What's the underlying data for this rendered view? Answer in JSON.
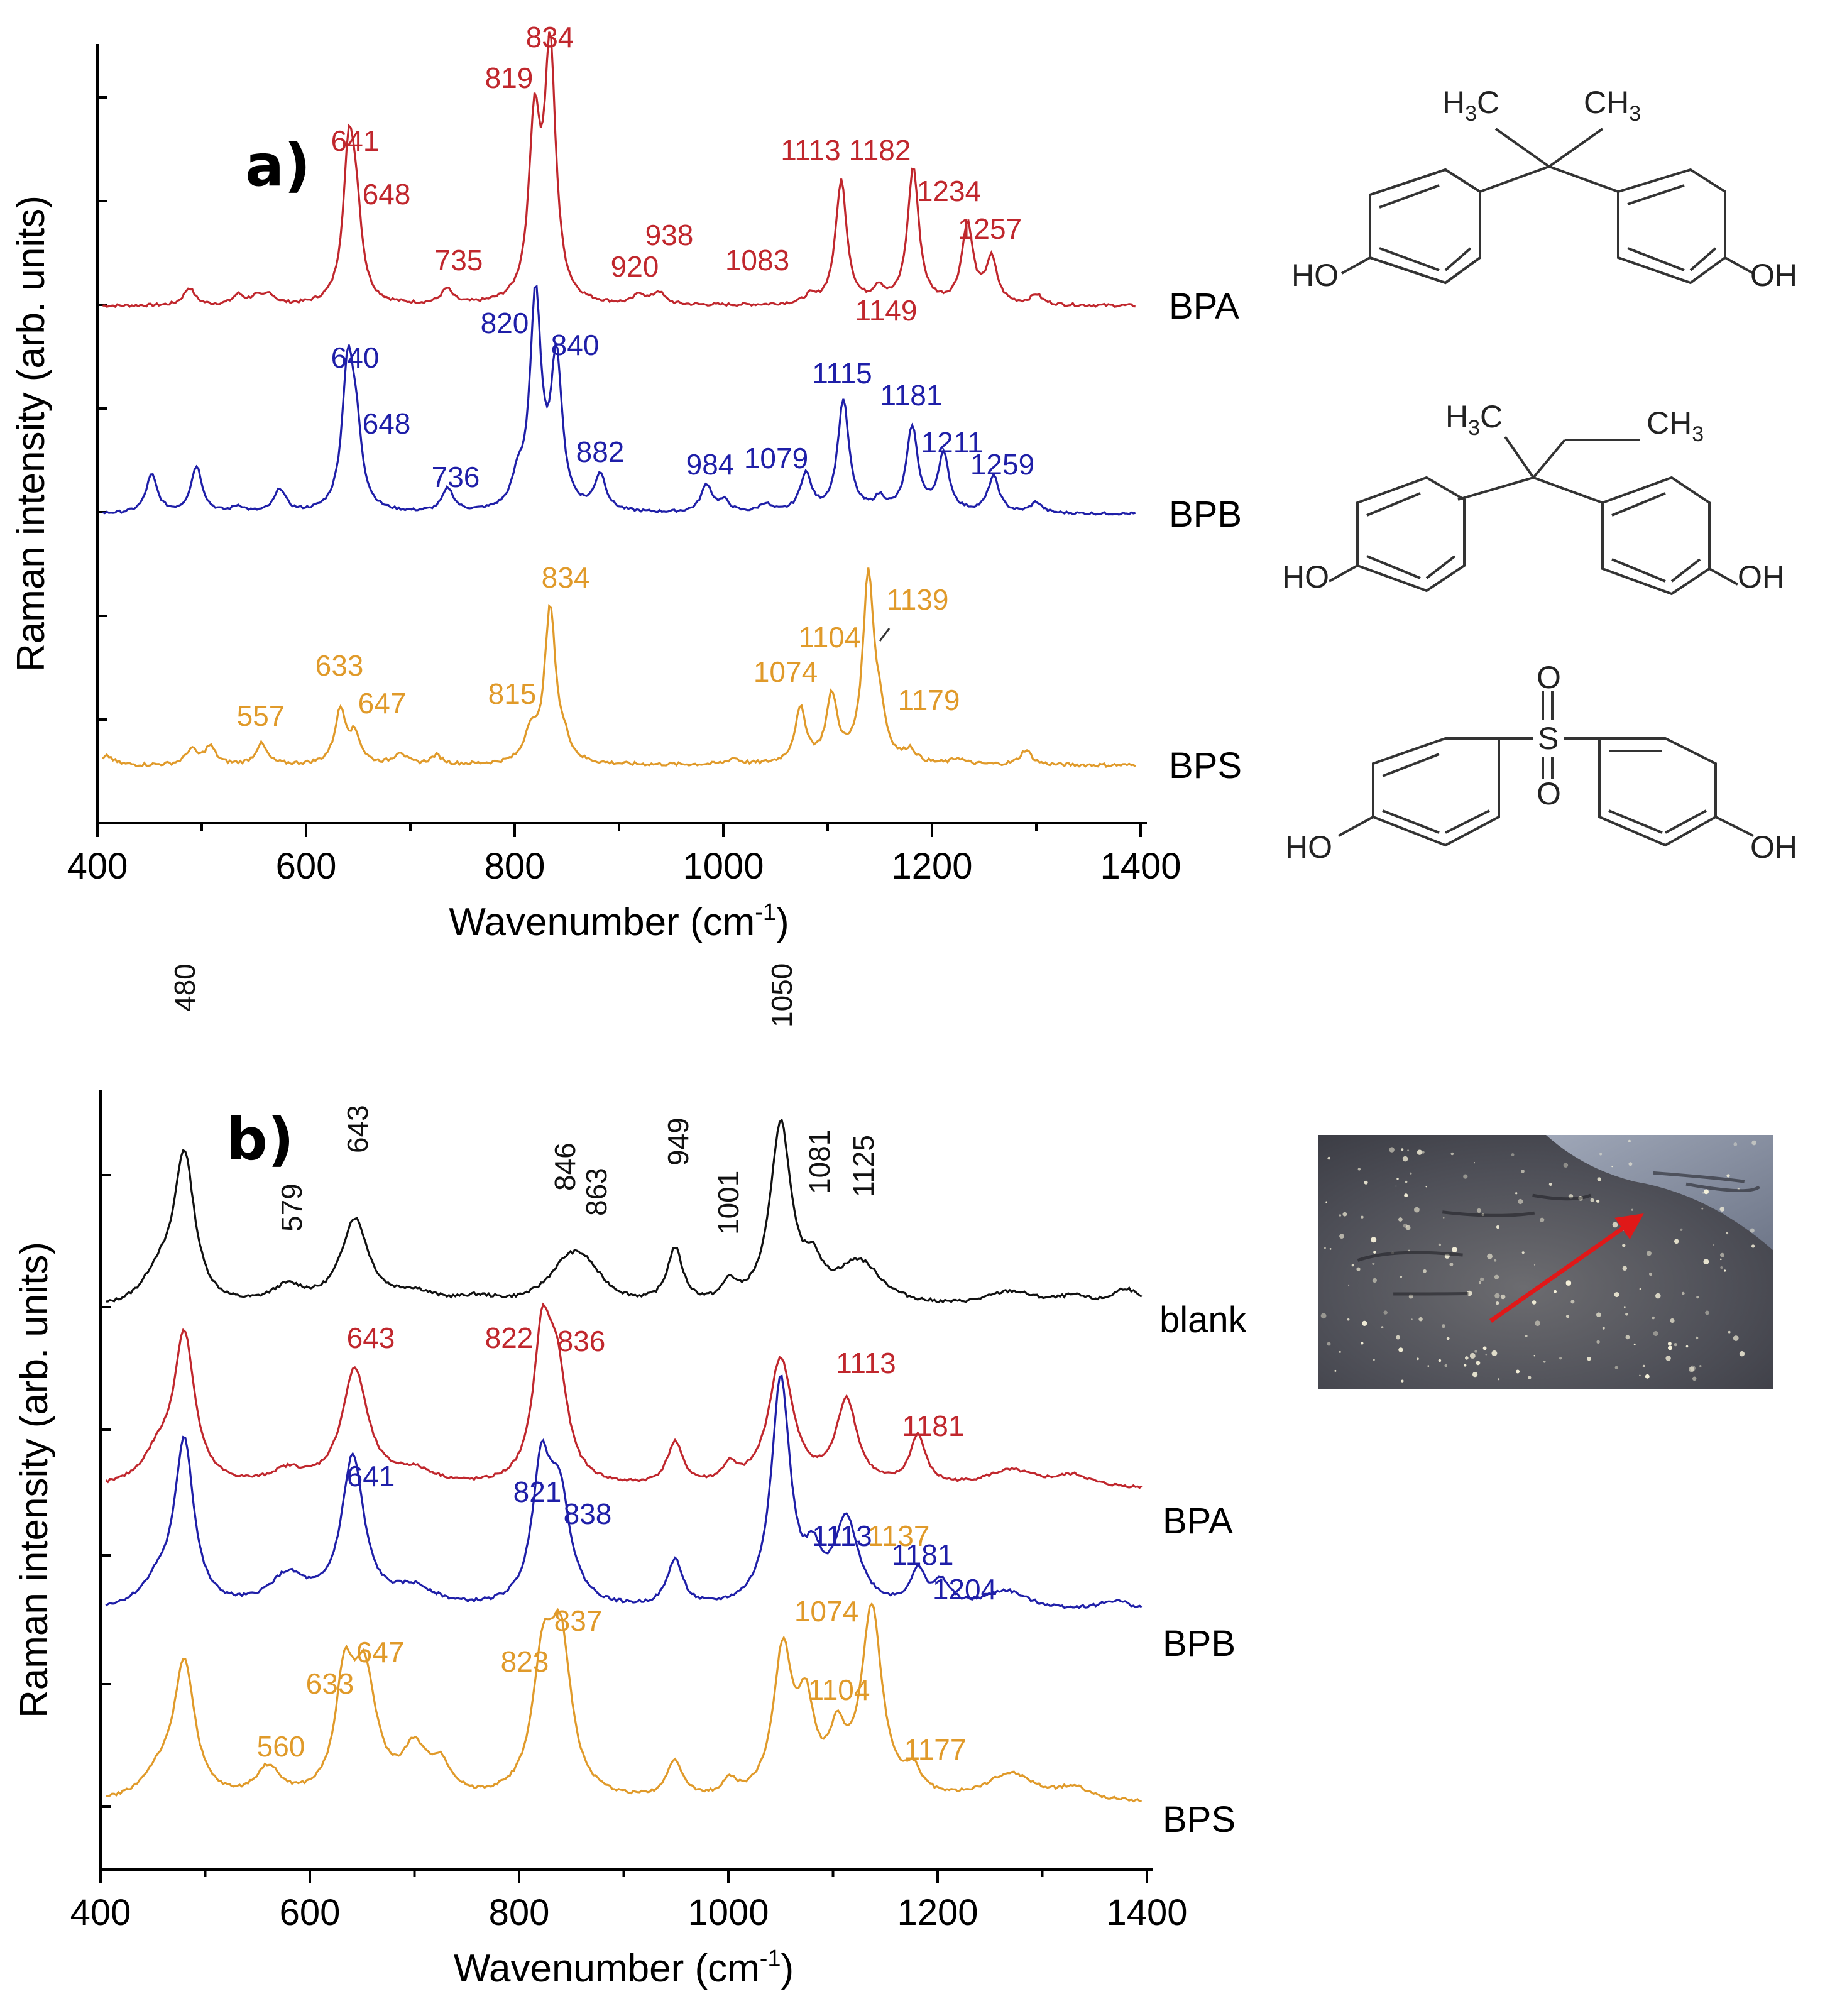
{
  "colors": {
    "BPA": "#c0272d",
    "BPB": "#1f1fa8",
    "BPS": "#e09a2a",
    "blank": "#111111"
  },
  "panel_a": {
    "letter": "a)"
  },
  "panel_b": {
    "letter": "b)"
  },
  "structures": {
    "BPA": {
      "me_left": "H",
      "me_left_sub": "3",
      "me_left_c": "C",
      "me_right": "CH",
      "me_right_sub": "3",
      "oh_left": "HO",
      "oh_right": "OH"
    },
    "BPB": {
      "me_left": "H",
      "me_left_sub": "3",
      "me_left_c": "C",
      "me_right": "CH",
      "me_right_sub": "3",
      "oh_left": "HO",
      "oh_right": "OH"
    },
    "BPS": {
      "o_top": "O",
      "s": "S",
      "o_bottom": "O",
      "oh_left": "HO",
      "oh_right": "OH"
    }
  },
  "chart_data": [
    {
      "type": "line",
      "panel": "a)",
      "xlabel": "Wavenumber (cm",
      "xlabel_sup": "-1",
      "xlabel_end": ")",
      "ylabel": "Raman intensity (arb. units)",
      "xlim": [
        400,
        1400
      ],
      "xticks": [
        "400",
        "600",
        "800",
        "1000",
        "1200",
        "1400"
      ],
      "series": [
        {
          "name": "BPA",
          "color": "#c0272d",
          "peaks": [
            [
              488,
              0.07
            ],
            [
              535,
              0.04
            ],
            [
              552,
              0.03
            ],
            [
              565,
              0.04
            ],
            [
              641,
              0.58
            ],
            [
              648,
              0.3
            ],
            [
              735,
              0.06
            ],
            [
              819,
              0.7
            ],
            [
              834,
              1.0
            ],
            [
              920,
              0.04
            ],
            [
              938,
              0.05
            ],
            [
              1083,
              0.03
            ],
            [
              1113,
              0.5
            ],
            [
              1149,
              0.06
            ],
            [
              1182,
              0.55
            ],
            [
              1234,
              0.32
            ],
            [
              1257,
              0.18
            ],
            [
              1300,
              0.04
            ]
          ],
          "labels": [
            [
              "641",
              "641"
            ],
            [
              "648",
              "648"
            ],
            [
              "735",
              "735"
            ],
            [
              "819",
              "819"
            ],
            [
              "834",
              "834"
            ],
            [
              "920",
              "920"
            ],
            [
              "938",
              "938"
            ],
            [
              "1083",
              "1083"
            ],
            [
              "1113",
              "1113"
            ],
            [
              "1149",
              "1149"
            ],
            [
              "1182",
              "1182"
            ],
            [
              "1234",
              "1234"
            ],
            [
              "1257",
              "1257"
            ]
          ]
        },
        {
          "name": "BPB",
          "color": "#1f1fa8",
          "peaks": [
            [
              452,
              0.18
            ],
            [
              495,
              0.22
            ],
            [
              535,
              0.03
            ],
            [
              575,
              0.11
            ],
            [
              640,
              0.66
            ],
            [
              648,
              0.32
            ],
            [
              736,
              0.11
            ],
            [
              803,
              0.12
            ],
            [
              820,
              1.0
            ],
            [
              840,
              0.7
            ],
            [
              882,
              0.17
            ],
            [
              984,
              0.13
            ],
            [
              1001,
              0.05
            ],
            [
              1040,
              0.04
            ],
            [
              1079,
              0.18
            ],
            [
              1115,
              0.53
            ],
            [
              1150,
              0.06
            ],
            [
              1181,
              0.4
            ],
            [
              1211,
              0.27
            ],
            [
              1259,
              0.17
            ],
            [
              1300,
              0.05
            ]
          ],
          "labels": [
            [
              "640",
              "640"
            ],
            [
              "648",
              "648"
            ],
            [
              "736",
              "736"
            ],
            [
              "820",
              "820"
            ],
            [
              "840",
              "840"
            ],
            [
              "882",
              "882"
            ],
            [
              "984",
              "984"
            ],
            [
              "1079",
              "1079"
            ],
            [
              "1115",
              "1115"
            ],
            [
              "1181",
              "1181"
            ],
            [
              "1211",
              "1211"
            ],
            [
              "1259",
              "1259"
            ]
          ]
        },
        {
          "name": "BPS",
          "color": "#e09a2a",
          "peaks": [
            [
              410,
              0.03
            ],
            [
              490,
              0.05
            ],
            [
              508,
              0.06
            ],
            [
              557,
              0.07
            ],
            [
              633,
              0.18
            ],
            [
              647,
              0.09
            ],
            [
              690,
              0.04
            ],
            [
              725,
              0.03
            ],
            [
              815,
              0.1
            ],
            [
              834,
              0.52
            ],
            [
              848,
              0.05
            ],
            [
              1010,
              0.02
            ],
            [
              1074,
              0.18
            ],
            [
              1104,
              0.22
            ],
            [
              1139,
              0.62
            ],
            [
              1150,
              0.12
            ],
            [
              1179,
              0.04
            ],
            [
              1225,
              0.02
            ],
            [
              1290,
              0.05
            ]
          ],
          "labels": [
            [
              "557",
              "557"
            ],
            [
              "633",
              "633"
            ],
            [
              "647",
              "647"
            ],
            [
              "815",
              "815"
            ],
            [
              "834",
              "834"
            ],
            [
              "1074",
              "1074"
            ],
            [
              "1104",
              "1104"
            ],
            [
              "1139",
              "1139"
            ],
            [
              "1179",
              "1179"
            ]
          ]
        }
      ]
    },
    {
      "type": "line",
      "panel": "b)",
      "xlabel": "Wavenumber (cm",
      "xlabel_sup": "-1",
      "xlabel_end": ")",
      "ylabel": "Raman intensity (arb. units)",
      "xlim": [
        400,
        1400
      ],
      "xticks": [
        "400",
        "600",
        "800",
        "1000",
        "1200",
        "1400"
      ],
      "series": [
        {
          "name": "blank",
          "color": "#111111",
          "labels": [
            [
              "480",
              "480"
            ],
            [
              "579",
              "579"
            ],
            [
              "643",
              "643"
            ],
            [
              "846",
              "846"
            ],
            [
              "863",
              "863"
            ],
            [
              "949",
              "949"
            ],
            [
              "1001",
              "1001"
            ],
            [
              "1050",
              "1050"
            ],
            [
              "1081",
              "1081"
            ],
            [
              "1125",
              "1125"
            ]
          ]
        },
        {
          "name": "BPA",
          "color": "#c0272d",
          "labels": [
            [
              "643",
              "643"
            ],
            [
              "822",
              "822"
            ],
            [
              "836",
              "836"
            ],
            [
              "1113",
              "1113"
            ],
            [
              "1181",
              "1181"
            ]
          ]
        },
        {
          "name": "BPB",
          "color": "#1f1fa8",
          "labels": [
            [
              "641",
              "641"
            ],
            [
              "821",
              "821"
            ],
            [
              "838",
              "838"
            ],
            [
              "1113",
              "1113"
            ],
            [
              "1181",
              "1181"
            ],
            [
              "1204",
              "1204"
            ]
          ]
        },
        {
          "name": "BPS",
          "color": "#e09a2a",
          "labels": [
            [
              "560",
              "560"
            ],
            [
              "633",
              "633"
            ],
            [
              "647",
              "647"
            ],
            [
              "823",
              "823"
            ],
            [
              "837",
              "837"
            ],
            [
              "1074",
              "1074"
            ],
            [
              "1104",
              "1104"
            ],
            [
              "1137",
              "1137"
            ],
            [
              "1177",
              "1177"
            ]
          ]
        }
      ]
    }
  ]
}
